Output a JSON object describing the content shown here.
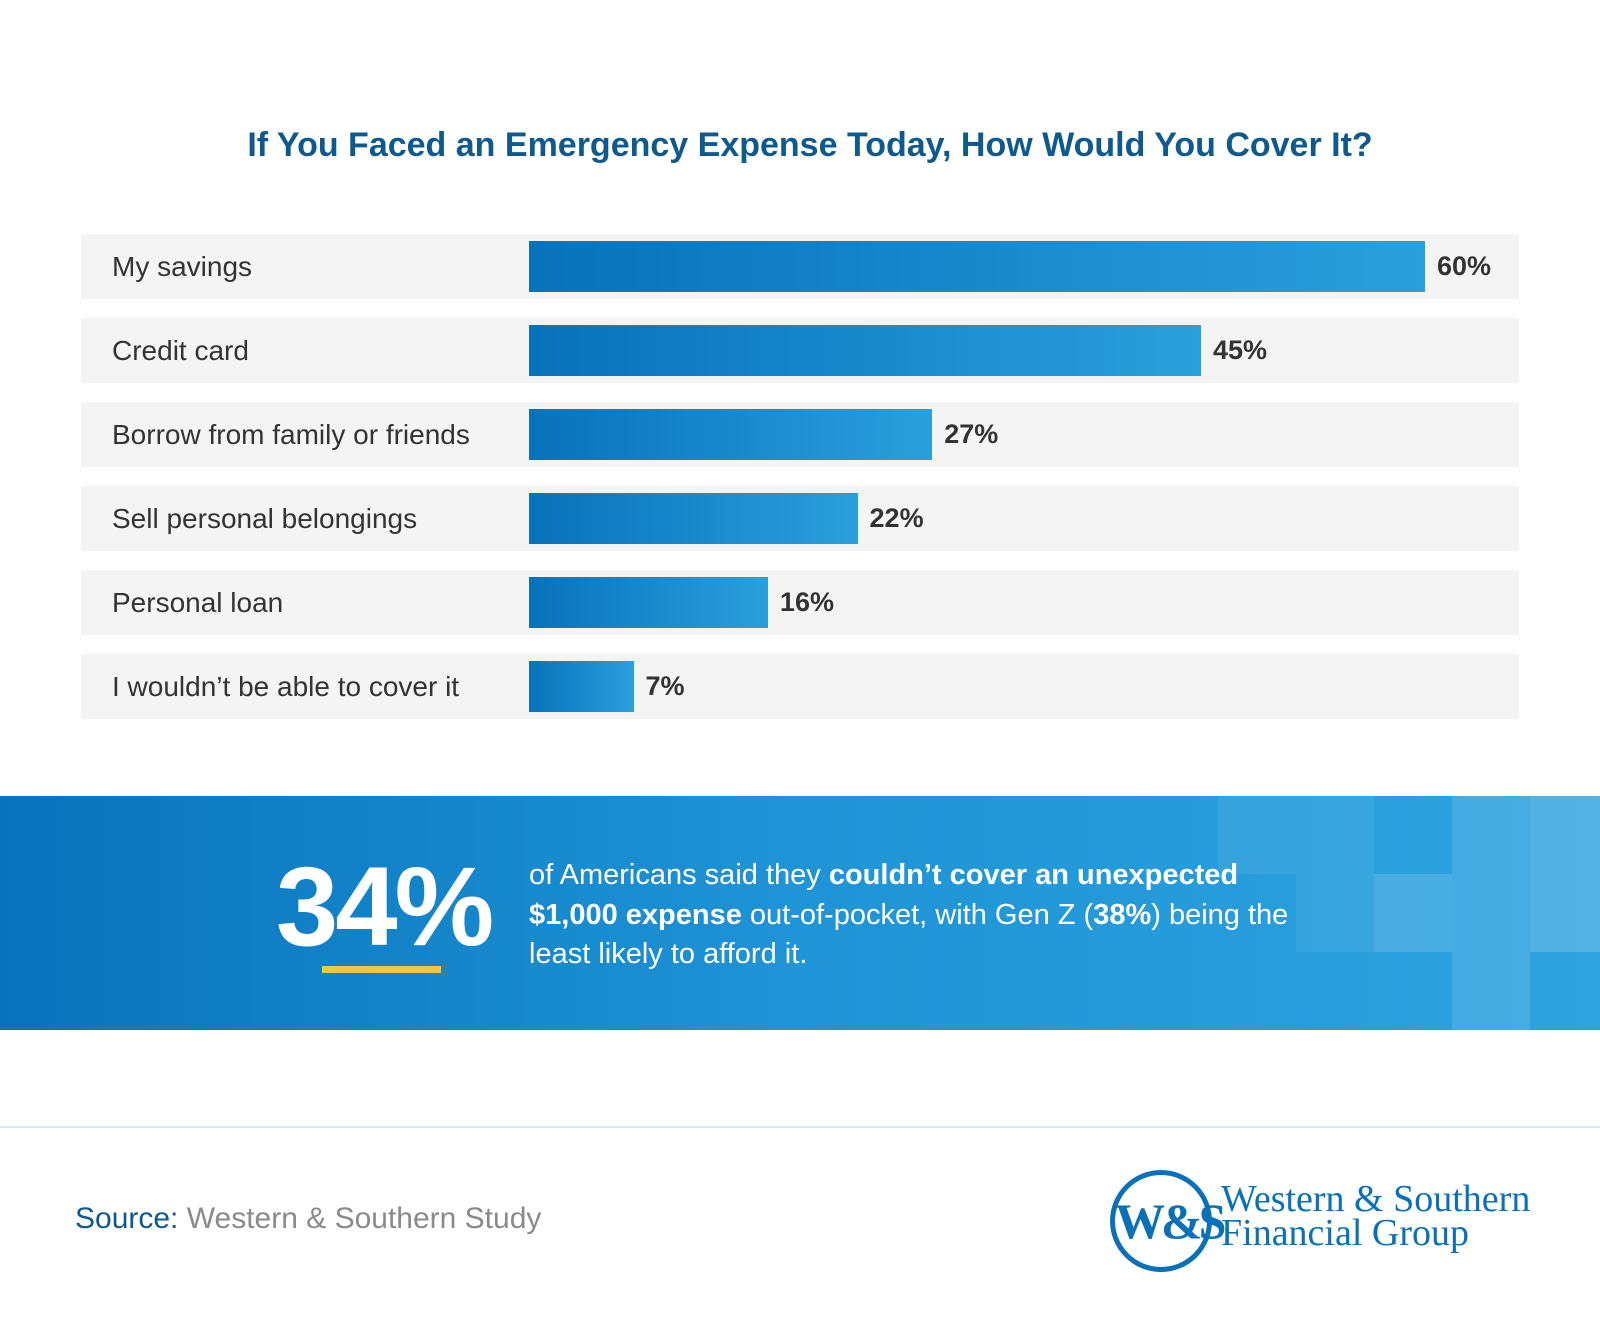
{
  "chart_data": {
    "type": "bar",
    "orientation": "horizontal",
    "title": "If You Faced an Emergency Expense Today, How Would You Cover It?",
    "categories": [
      "My savings",
      "Credit card",
      "Borrow from family or friends",
      "Sell personal belongings",
      "Personal loan",
      "I wouldn’t be able to cover it"
    ],
    "values": [
      60,
      45,
      27,
      22,
      16,
      7
    ],
    "value_labels": [
      "60%",
      "45%",
      "27%",
      "22%",
      "16%",
      "7%"
    ],
    "grid": false,
    "bar_color_start": "#0872bb",
    "bar_color_end": "#2b9fdc"
  },
  "callout": {
    "big_number": "34%",
    "text_1": "of Americans said they ",
    "bold_1": "couldn’t cover an unexpected $1,000 expense",
    "text_2": " out-of-pocket, with Gen Z (",
    "bold_2": "38%",
    "text_3": ") being the least likely to afford it.",
    "accent_color": "#f2c744"
  },
  "footer": {
    "source_label": "Source:",
    "source_value": "Western & Southern Study",
    "logo_mark": "W&S",
    "logo_line1": "Western & Southern",
    "logo_line2": "Financial Group",
    "brand_color": "#0a70b8"
  }
}
